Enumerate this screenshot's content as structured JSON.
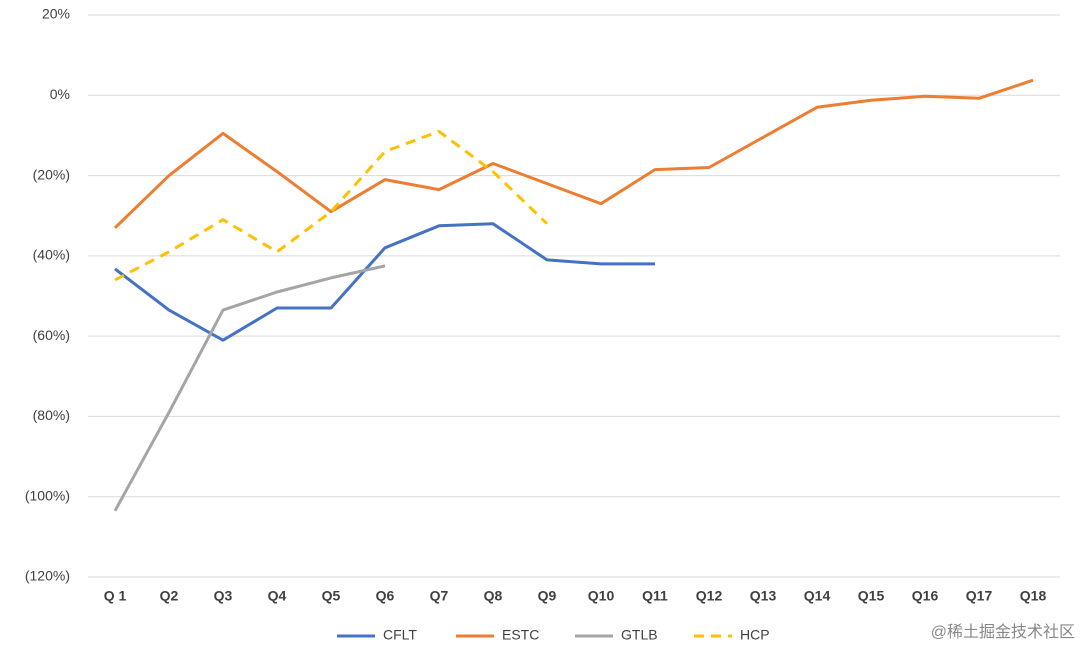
{
  "chart_data": {
    "type": "line",
    "categories": [
      "Q 1",
      "Q2",
      "Q3",
      "Q4",
      "Q5",
      "Q6",
      "Q7",
      "Q8",
      "Q9",
      "Q10",
      "Q11",
      "Q12",
      "Q13",
      "Q14",
      "Q15",
      "Q16",
      "Q17",
      "Q18"
    ],
    "series": [
      {
        "name": "CFLT",
        "color": "#4472c4",
        "values": [
          -43.25,
          -53.5,
          -61,
          -53,
          -53,
          -38,
          -32.5,
          -32,
          -41,
          -42,
          -42,
          null,
          null,
          null,
          null,
          null,
          null,
          null
        ]
      },
      {
        "name": "ESTC",
        "color": "#ed7d31",
        "values": [
          -33,
          -20,
          -9.5,
          -19,
          -29,
          -21,
          -23.5,
          -17,
          -22,
          -27,
          -18.5,
          -18,
          -10.5,
          -3,
          -1.25,
          -0.25,
          -0.75,
          3.75
        ]
      },
      {
        "name": "GTLB",
        "color": "#a5a5a5",
        "values": [
          -103.5,
          -79,
          -53.5,
          -49,
          -45.5,
          -42.5,
          null,
          null,
          null,
          null,
          null,
          null,
          null,
          null,
          null,
          null,
          null,
          null
        ]
      },
      {
        "name": "HCP",
        "color": "#ffc000",
        "dashed": true,
        "values": [
          -46,
          -39,
          -31,
          -39,
          -29,
          -14,
          -9,
          -19,
          -32,
          null,
          null,
          null,
          null,
          null,
          null,
          null,
          null,
          null
        ]
      }
    ],
    "ylim": [
      -120,
      20
    ],
    "yticks": [
      {
        "value": 20,
        "label": "20%"
      },
      {
        "value": 0,
        "label": "0%"
      },
      {
        "value": -20,
        "label": "(20%)"
      },
      {
        "value": -40,
        "label": "(40%)"
      },
      {
        "value": -60,
        "label": "(60%)"
      },
      {
        "value": -80,
        "label": "(80%)"
      },
      {
        "value": -100,
        "label": "(100%)"
      },
      {
        "value": -120,
        "label": "(120%)"
      }
    ],
    "grid": true,
    "legend": "bottom",
    "watermark": "@稀土掘金技术社区"
  }
}
